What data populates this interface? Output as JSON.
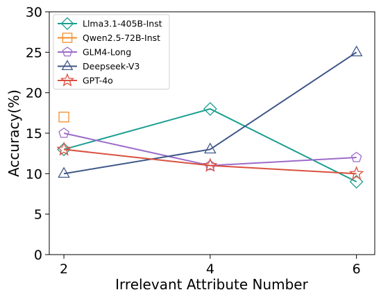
{
  "chart_data": {
    "type": "line",
    "xlabel": "Irrelevant Attribute Number",
    "ylabel": "Accuracy(%)",
    "x_ticks": [
      2,
      4,
      6
    ],
    "y_ticks": [
      0,
      5,
      10,
      15,
      20,
      25,
      30
    ],
    "xlim": [
      1.8,
      6.25
    ],
    "ylim": [
      0,
      30
    ],
    "grid": false,
    "legend_position": "top-left",
    "series": [
      {
        "name": "Llma3.1-405B-Inst",
        "color": "#1a9e8f",
        "marker": "diamond",
        "x": [
          2,
          4,
          6
        ],
        "values": [
          13,
          18,
          9
        ]
      },
      {
        "name": "Qwen2.5-72B-Inst",
        "color": "#f28e2b",
        "marker": "square",
        "x": [
          2
        ],
        "values": [
          17
        ]
      },
      {
        "name": "GLM4-Long",
        "color": "#9b6bc9",
        "marker": "pentagon",
        "x": [
          2,
          4,
          6
        ],
        "values": [
          15,
          11,
          12
        ]
      },
      {
        "name": "Deepseek-V3",
        "color": "#3e5688",
        "marker": "triangle",
        "x": [
          2,
          4,
          6
        ],
        "values": [
          10,
          13,
          25
        ]
      },
      {
        "name": "GPT-4o",
        "color": "#d9503f",
        "marker": "star",
        "x": [
          2,
          4,
          6
        ],
        "values": [
          13,
          11,
          10
        ]
      }
    ]
  }
}
